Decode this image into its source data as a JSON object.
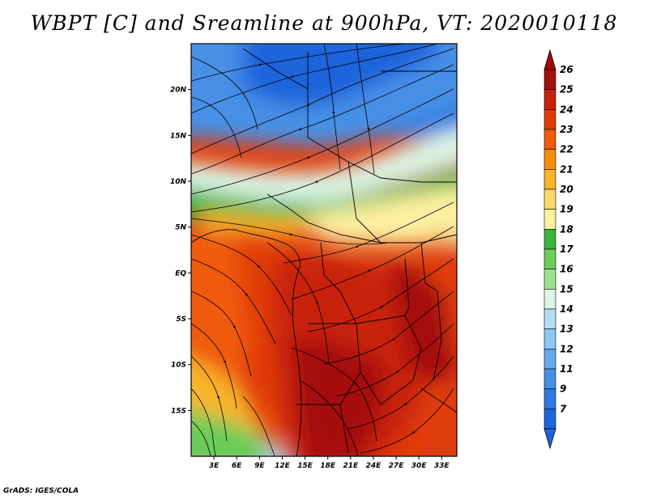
{
  "title": "WBPT [C] and Sreamline at 900hPa, VT: 2020010118",
  "credit": "GrADS: IGES/COLA",
  "map": {
    "lon_range": [
      0,
      35
    ],
    "lat_range": [
      -20,
      25
    ],
    "lat_ticks": [
      {
        "value": 20,
        "label": "20N"
      },
      {
        "value": 15,
        "label": "15N"
      },
      {
        "value": 10,
        "label": "10N"
      },
      {
        "value": 5,
        "label": "5N"
      },
      {
        "value": 0,
        "label": "EQ"
      },
      {
        "value": -5,
        "label": "5S"
      },
      {
        "value": -10,
        "label": "10S"
      },
      {
        "value": -15,
        "label": "15S"
      }
    ],
    "lon_ticks": [
      {
        "value": 3,
        "label": "3E"
      },
      {
        "value": 6,
        "label": "6E"
      },
      {
        "value": 9,
        "label": "9E"
      },
      {
        "value": 12,
        "label": "12E"
      },
      {
        "value": 15,
        "label": "15E"
      },
      {
        "value": 18,
        "label": "18E"
      },
      {
        "value": 21,
        "label": "21E"
      },
      {
        "value": 24,
        "label": "24E"
      },
      {
        "value": 27,
        "label": "27E"
      },
      {
        "value": 30,
        "label": "30E"
      },
      {
        "value": 33,
        "label": "33E"
      }
    ]
  },
  "colorbar": {
    "labels": [
      "26",
      "25",
      "24",
      "23",
      "22",
      "21",
      "20",
      "19",
      "18",
      "17",
      "16",
      "15",
      "14",
      "13",
      "12",
      "11",
      "9",
      "7"
    ],
    "colors": [
      "#a50f0f",
      "#c8200f",
      "#e03c0a",
      "#f05a0a",
      "#f58c0a",
      "#f8b42a",
      "#fcd96a",
      "#fdf0a0",
      "#3cb43c",
      "#6ccc5a",
      "#a0e08c",
      "#dcf5e6",
      "#b4dcf5",
      "#8cc8f0",
      "#64aaeb",
      "#4690e6",
      "#2d78e1",
      "#1e64dc"
    ],
    "top_color": "#a00a0a",
    "bottom_color": "#1e64dc"
  }
}
